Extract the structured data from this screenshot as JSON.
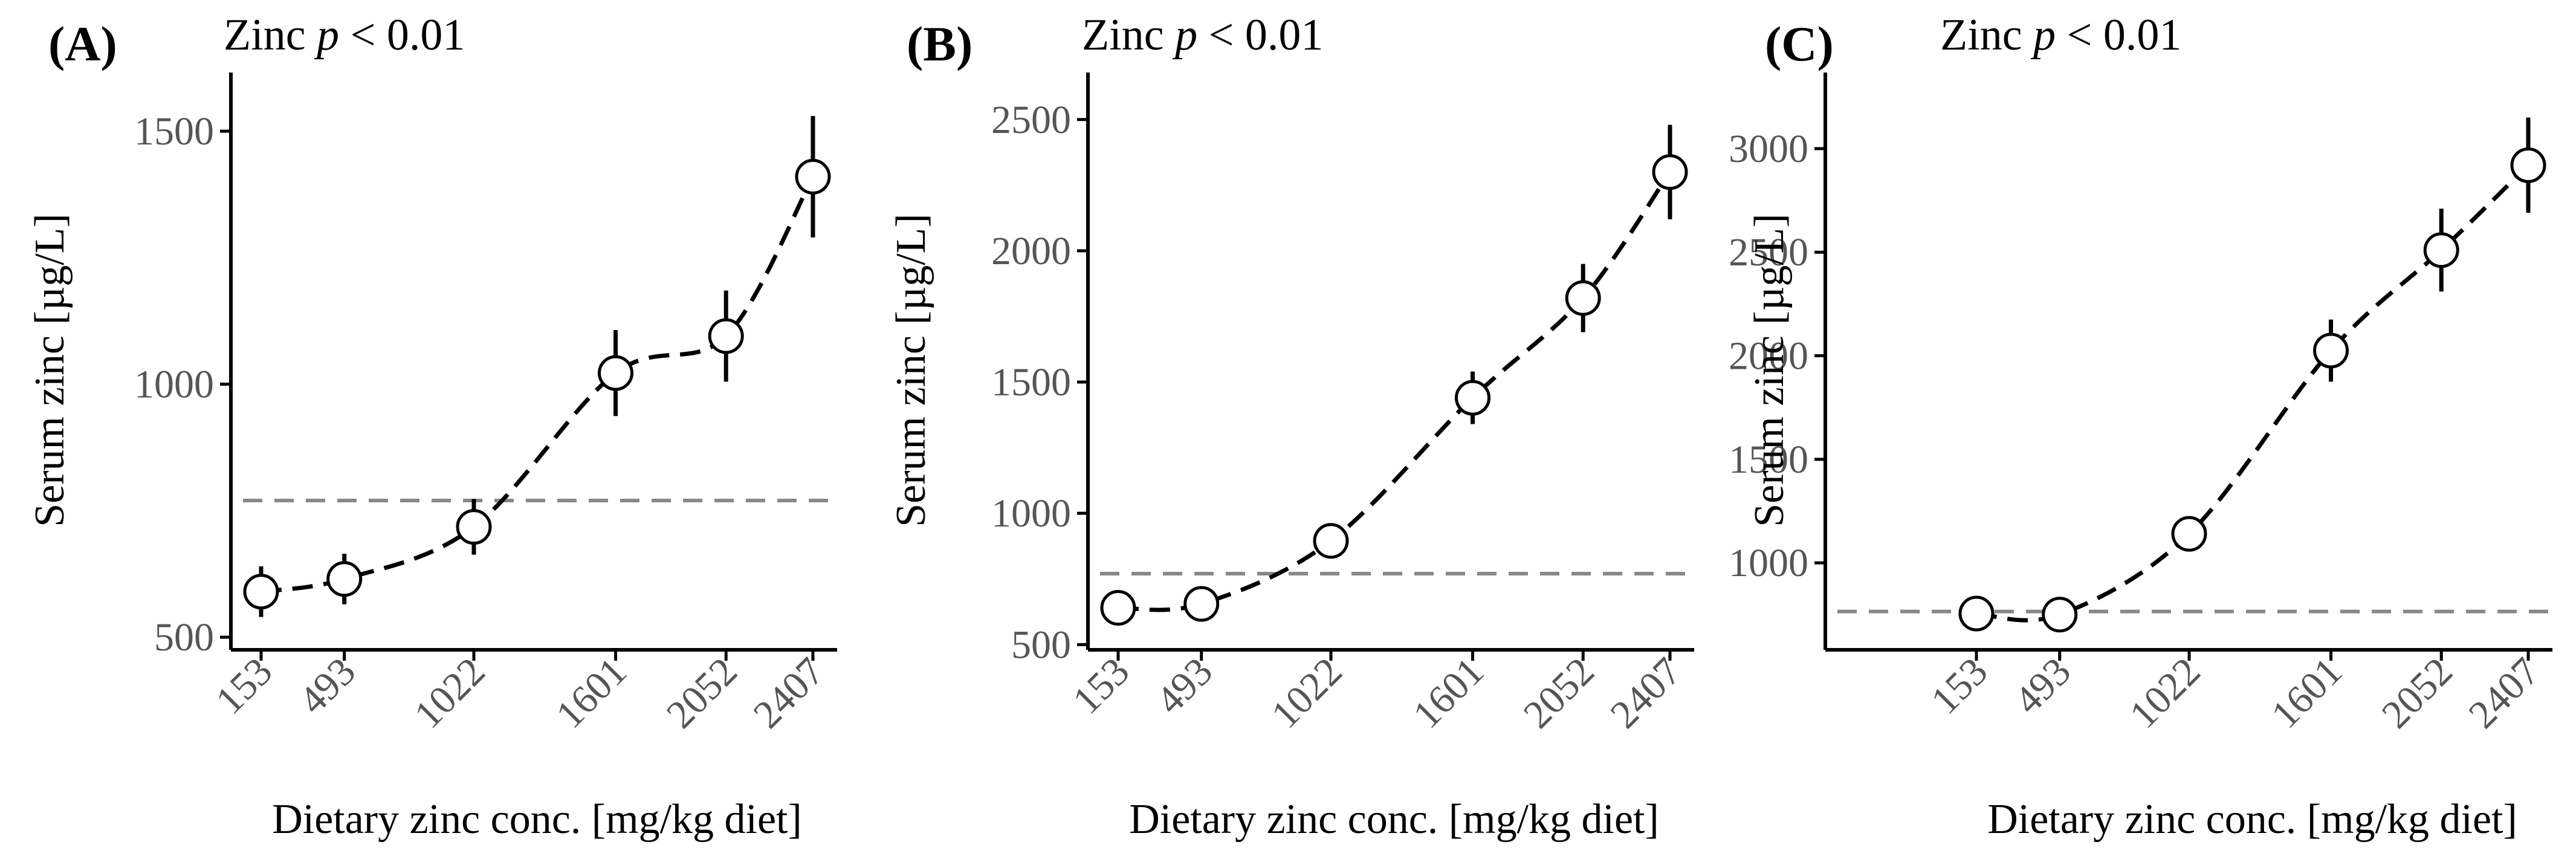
{
  "figure": {
    "x_label": "Dietary zinc conc. [mg/kg diet]",
    "y_label": "Serum zinc [µg/L]"
  },
  "colors": {
    "reference_line": "#888888",
    "series": "#000000",
    "marker_fill": "#ffffff"
  },
  "chart_data": [
    {
      "type": "line",
      "panel": "(A)",
      "subtitle_prefix": "Zinc ",
      "subtitle_p": "p",
      "subtitle_suffix": " < 0.01",
      "xlabel": "Dietary zinc conc. [mg/kg diet]",
      "ylabel": "Serum zinc [µg/L]",
      "categories": [
        "153",
        "493",
        "1022",
        "1601",
        "2052",
        "2407"
      ],
      "x": [
        153,
        493,
        1022,
        1601,
        2052,
        2407
      ],
      "y": [
        590,
        615,
        718,
        1022,
        1095,
        1410
      ],
      "y_err": [
        50,
        50,
        55,
        85,
        90,
        120
      ],
      "reference_y": 770,
      "ylim": [
        475,
        1580
      ],
      "yticks": [
        "500",
        "1000",
        "1500"
      ]
    },
    {
      "type": "line",
      "panel": "(B)",
      "subtitle_prefix": "Zinc ",
      "subtitle_p": "p",
      "subtitle_suffix": " < 0.01",
      "xlabel": "Dietary zinc conc. [mg/kg diet]",
      "ylabel": "Serum zinc [µg/L]",
      "categories": [
        "153",
        "493",
        "1022",
        "1601",
        "2052",
        "2407"
      ],
      "x": [
        153,
        493,
        1022,
        1601,
        2052,
        2407
      ],
      "y": [
        640,
        655,
        895,
        1440,
        1820,
        2300
      ],
      "y_err": [
        30,
        30,
        60,
        100,
        130,
        180
      ],
      "reference_y": 770,
      "ylim": [
        480,
        2610
      ],
      "yticks": [
        "500",
        "1000",
        "1500",
        "2000",
        "2500"
      ]
    },
    {
      "type": "line",
      "panel": "(C)",
      "subtitle_prefix": "Zinc ",
      "subtitle_p": "p",
      "subtitle_suffix": " < 0.01",
      "xlabel": "Dietary zinc conc. [mg/kg diet]",
      "ylabel": "Serum zinc [µg/L]",
      "categories": [
        "153",
        "493",
        "1022",
        "1601",
        "2052",
        "2407"
      ],
      "x": [
        153,
        493,
        1022,
        1601,
        2052,
        2407
      ],
      "y": [
        755,
        750,
        1140,
        2025,
        2510,
        2920
      ],
      "y_err": [
        30,
        30,
        60,
        150,
        200,
        230
      ],
      "reference_y": 765,
      "ylim": [
        580,
        3280
      ],
      "yticks": [
        "1000",
        "1500",
        "2000",
        "2500",
        "3000"
      ]
    }
  ]
}
